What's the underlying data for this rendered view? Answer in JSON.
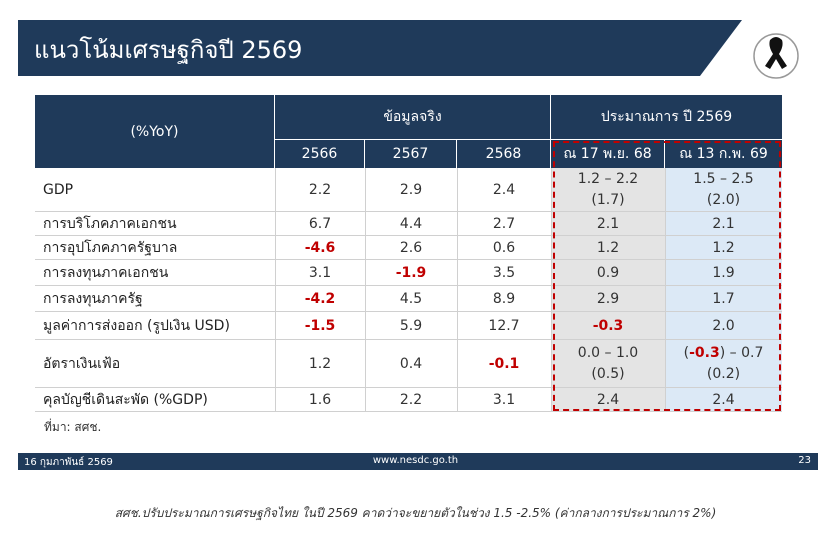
{
  "header": {
    "title": "แนวโน้มเศรษฐกิจปี 2569"
  },
  "table": {
    "corner": "(%YoY)",
    "groups": [
      "ข้อมูลจริง",
      "ประมาณการ ปี 2569"
    ],
    "columns": [
      "2566",
      "2567",
      "2568",
      "ณ 17 พ.ย. 68",
      "ณ 13 ก.พ. 69"
    ],
    "rows": [
      {
        "label": "GDP",
        "cells": [
          "2.2",
          "2.9",
          "2.4",
          [
            "1.2 – 2.2",
            "(1.7)"
          ],
          [
            "1.5 – 2.5",
            "(2.0)"
          ]
        ]
      },
      {
        "label": "การบริโภคภาคเอกชน",
        "cells": [
          "6.7",
          "4.4",
          "2.7",
          "2.1",
          "2.1"
        ]
      },
      {
        "label": "การอุปโภคภาครัฐบาล",
        "cells": [
          "-4.6",
          "2.6",
          "0.6",
          "1.2",
          "1.2"
        ]
      },
      {
        "label": "การลงทุนภาคเอกชน",
        "cells": [
          "3.1",
          "-1.9",
          "3.5",
          "0.9",
          "1.9"
        ]
      },
      {
        "label": "การลงทุนภาครัฐ",
        "cells": [
          "-4.2",
          "4.5",
          "8.9",
          "2.9",
          "1.7"
        ]
      },
      {
        "label": "มูลค่าการส่งออก (รูปเงิน USD)",
        "cells": [
          "-1.5",
          "5.9",
          "12.7",
          "-0.3",
          "2.0"
        ]
      },
      {
        "label": "อัตราเงินเฟ้อ",
        "cells": [
          "1.2",
          "0.4",
          "-0.1",
          [
            "0.0 – 1.0",
            "(0.5)"
          ],
          [
            [
              "(",
              "-0.3",
              ") – 0.7"
            ],
            "(0.2)"
          ]
        ]
      },
      {
        "label": "คุลบัญชีเดินสะพัด (%GDP)",
        "cells": [
          "1.6",
          "2.2",
          "3.1",
          "2.4",
          "2.4"
        ]
      }
    ]
  },
  "source": "ที่มา: สศช.",
  "footer": {
    "date": "16 กุมภาพันธ์ 2569",
    "url": "www.nesdc.go.th",
    "page": "23"
  },
  "caption": "สศช.ปรับประมาณการเศรษฐกิจไทย ในปี 2569 คาดว่าจะขยายตัวในช่วง 1.5 -2.5% (ค่ากลางการประมาณการ 2%)"
}
